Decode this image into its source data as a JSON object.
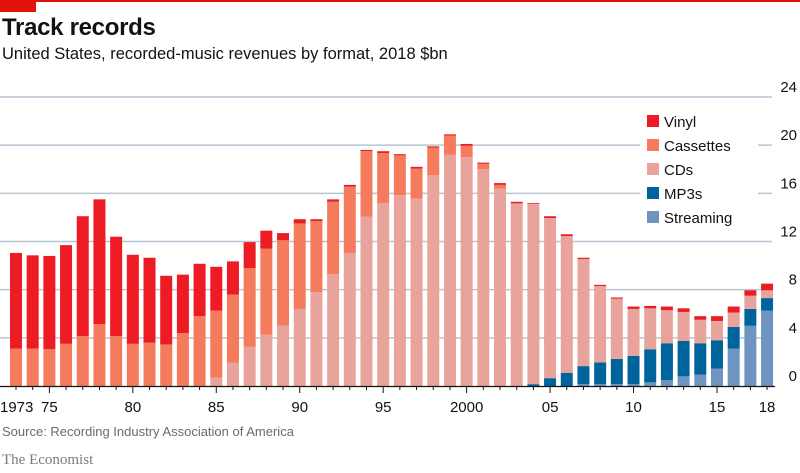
{
  "header": {
    "title": "Track records",
    "subtitle": "United States, recorded-music revenues by format, 2018 $bn"
  },
  "footer": {
    "source": "Source: Recording Industry Association of America",
    "brand": "The Economist"
  },
  "chart_data": {
    "type": "bar",
    "stacked": true,
    "title": "Track records",
    "subtitle": "United States, recorded-music revenues by format, 2018 $bn",
    "xlabel": "",
    "ylabel": "",
    "ylim": [
      0,
      24
    ],
    "yticks": [
      0,
      4,
      8,
      12,
      16,
      20,
      24
    ],
    "y_axis_side": "right",
    "grid": true,
    "legend_placement": "top-right",
    "categories": [
      1973,
      1974,
      1975,
      1976,
      1977,
      1978,
      1979,
      1980,
      1981,
      1982,
      1983,
      1984,
      1985,
      1986,
      1987,
      1988,
      1989,
      1990,
      1991,
      1992,
      1993,
      1994,
      1995,
      1996,
      1997,
      1998,
      1999,
      2000,
      2001,
      2002,
      2003,
      2004,
      2005,
      2006,
      2007,
      2008,
      2009,
      2010,
      2011,
      2012,
      2013,
      2014,
      2015,
      2016,
      2017,
      2018
    ],
    "xtick_labels": [
      {
        "year": 1973,
        "label": "1973"
      },
      {
        "year": 1975,
        "label": "75"
      },
      {
        "year": 1980,
        "label": "80"
      },
      {
        "year": 1985,
        "label": "85"
      },
      {
        "year": 1990,
        "label": "90"
      },
      {
        "year": 1995,
        "label": "95"
      },
      {
        "year": 2000,
        "label": "2000"
      },
      {
        "year": 2005,
        "label": "05"
      },
      {
        "year": 2010,
        "label": "10"
      },
      {
        "year": 2015,
        "label": "15"
      },
      {
        "year": 2018,
        "label": "18"
      }
    ],
    "series": [
      {
        "name": "Streaming",
        "color": "#6e95c2",
        "values": [
          0,
          0,
          0,
          0,
          0,
          0,
          0,
          0,
          0,
          0,
          0,
          0,
          0,
          0,
          0,
          0,
          0,
          0,
          0,
          0,
          0,
          0,
          0,
          0,
          0,
          0,
          0,
          0,
          0,
          0,
          0,
          0,
          0,
          0,
          0.15,
          0.15,
          0.15,
          0.15,
          0.3,
          0.5,
          0.8,
          0.95,
          1.45,
          3.1,
          5.0,
          6.25
        ]
      },
      {
        "name": "MP3s",
        "color": "#00649c",
        "values": [
          0,
          0,
          0,
          0,
          0,
          0,
          0,
          0,
          0,
          0,
          0,
          0,
          0,
          0,
          0,
          0,
          0,
          0,
          0,
          0,
          0,
          0,
          0,
          0,
          0,
          0,
          0,
          0,
          0,
          0,
          0,
          0.15,
          0.65,
          1.1,
          1.5,
          1.8,
          2.1,
          2.35,
          2.75,
          3.05,
          2.95,
          2.6,
          2.35,
          1.8,
          1.4,
          1.05
        ]
      },
      {
        "name": "CDs",
        "color": "#e8a39c",
        "values": [
          0,
          0,
          0,
          0,
          0,
          0,
          0,
          0,
          0,
          0,
          0,
          0,
          0.7,
          1.95,
          3.25,
          4.25,
          5.0,
          6.4,
          7.8,
          9.3,
          11.05,
          14.05,
          15.2,
          15.85,
          15.55,
          17.5,
          19.2,
          19.0,
          18.0,
          16.4,
          15.1,
          14.95,
          13.3,
          11.35,
          8.9,
          6.35,
          5.0,
          3.9,
          3.4,
          2.75,
          2.4,
          1.95,
          1.6,
          1.2,
          1.1,
          0.65
        ]
      },
      {
        "name": "Cassettes",
        "color": "#f47c5c",
        "values": [
          3.1,
          3.1,
          3.05,
          3.5,
          4.15,
          5.15,
          4.15,
          3.5,
          3.6,
          3.45,
          4.4,
          5.8,
          5.55,
          5.65,
          6.55,
          7.15,
          7.1,
          7.1,
          5.9,
          6.0,
          5.5,
          5.45,
          4.15,
          3.3,
          2.5,
          2.3,
          1.6,
          0.95,
          0.45,
          0.3,
          0.1,
          0.05,
          0,
          0,
          0,
          0,
          0,
          0,
          0,
          0,
          0,
          0,
          0,
          0,
          0,
          0
        ]
      },
      {
        "name": "Vinyl",
        "color": "#ed1c24",
        "values": [
          7.95,
          7.75,
          7.75,
          8.2,
          9.95,
          10.35,
          8.25,
          7.4,
          7.05,
          5.7,
          4.85,
          4.35,
          3.65,
          2.75,
          2.15,
          1.5,
          0.6,
          0.35,
          0.15,
          0.2,
          0.15,
          0.1,
          0.15,
          0.1,
          0.15,
          0.1,
          0.1,
          0.15,
          0.1,
          0.15,
          0.1,
          0.05,
          0.15,
          0.15,
          0.1,
          0.1,
          0.1,
          0.2,
          0.2,
          0.3,
          0.3,
          0.3,
          0.4,
          0.5,
          0.45,
          0.55
        ]
      }
    ],
    "legend": [
      {
        "label": "Vinyl",
        "color": "#ed1c24"
      },
      {
        "label": "Cassettes",
        "color": "#f47c5c"
      },
      {
        "label": "CDs",
        "color": "#e8a39c"
      },
      {
        "label": "MP3s",
        "color": "#00649c"
      },
      {
        "label": "Streaming",
        "color": "#6e95c2"
      }
    ]
  }
}
